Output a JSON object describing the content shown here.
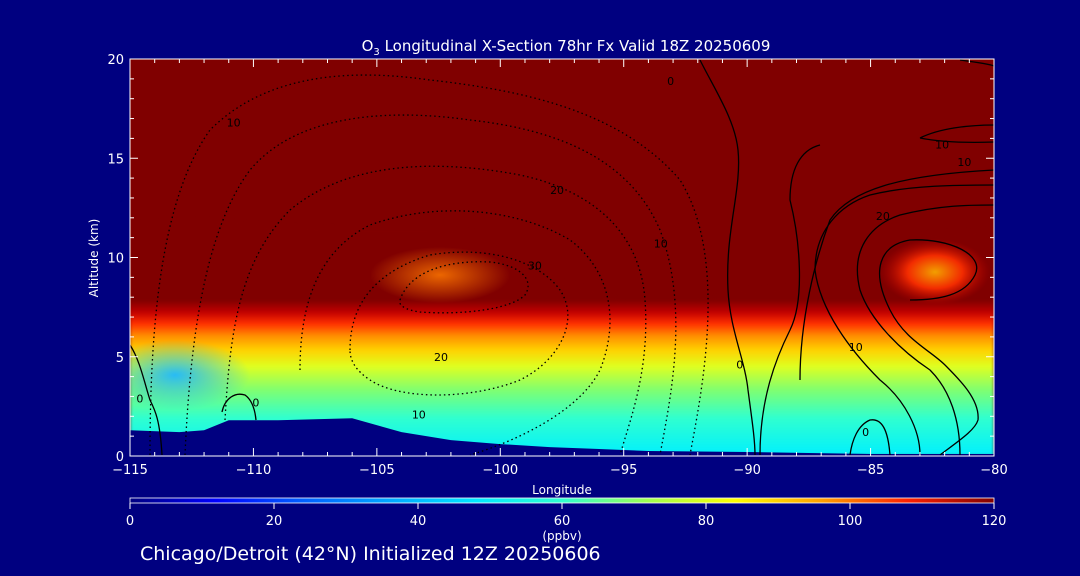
{
  "chart_data": {
    "type": "heatmap",
    "title": "O3 Longitudinal X-Section 78hr  Fx Valid 18Z 20250609",
    "title_parts": {
      "prefix": "O",
      "subscript": "3",
      "suffix": " Longitudinal X-Section 78hr  Fx Valid 18Z 20250609"
    },
    "xlabel": "Longitude",
    "ylabel": "Altitude (km)",
    "xlim": [
      -115,
      -80
    ],
    "ylim": [
      0,
      20
    ],
    "x_ticks": [
      -115,
      -110,
      -105,
      -100,
      -95,
      -90,
      -85,
      -80
    ],
    "x_tick_labels": [
      "−115",
      "−110",
      "−105",
      "−100",
      "−95",
      "−90",
      "−85",
      "−80"
    ],
    "y_ticks": [
      0,
      5,
      10,
      15,
      20
    ],
    "y_tick_labels": [
      "0",
      "5",
      "10",
      "15",
      "20"
    ],
    "colorbar": {
      "label": "(ppbv)",
      "range": [
        0,
        120
      ],
      "ticks": [
        0,
        20,
        40,
        60,
        80,
        100,
        120
      ],
      "tick_labels": [
        "0",
        "20",
        "40",
        "60",
        "80",
        "100",
        "120"
      ],
      "colors": [
        "#000080",
        "#0000ff",
        "#0080ff",
        "#00e0ff",
        "#00ffc0",
        "#80ff40",
        "#ffff00",
        "#ffa000",
        "#ff4000",
        "#d00000",
        "#800000"
      ]
    },
    "terrain_km": [
      [
        -115,
        1.3
      ],
      [
        -113,
        1.2
      ],
      [
        -112,
        1.3
      ],
      [
        -111,
        1.8
      ],
      [
        -109,
        1.8
      ],
      [
        -106,
        1.9
      ],
      [
        -104,
        1.2
      ],
      [
        -102,
        0.8
      ],
      [
        -100,
        0.6
      ],
      [
        -98,
        0.45
      ],
      [
        -96,
        0.35
      ],
      [
        -94,
        0.25
      ],
      [
        -90,
        0.2
      ],
      [
        -85,
        0.1
      ],
      [
        -80,
        0.1
      ]
    ],
    "ozone_field_description_points": {
      "tropopause_120ppbv_altitude_km": [
        [
          -115,
          11.7
        ],
        [
          -112,
          11.9
        ],
        [
          -109,
          11.6
        ],
        [
          -106,
          11.5
        ],
        [
          -103,
          11.5
        ],
        [
          -101,
          11.3
        ],
        [
          -99,
          9.3
        ],
        [
          -97,
          8.7
        ],
        [
          -95,
          7.8
        ],
        [
          -92,
          7.8
        ],
        [
          -90,
          8.4
        ],
        [
          -87,
          8.6
        ],
        [
          -85,
          8.9
        ],
        [
          -83,
          11.2
        ],
        [
          -80,
          11.4
        ]
      ]
    },
    "contours": [
      {
        "value": "0",
        "label_at": [
          -114.6,
          2.9
        ]
      },
      {
        "value": "0",
        "label_at": [
          -109.9,
          2.7
        ]
      },
      {
        "value": "0",
        "label_at": [
          -93.1,
          18.9
        ]
      },
      {
        "value": "0",
        "label_at": [
          -90.3,
          4.6
        ]
      },
      {
        "value": "0",
        "label_at": [
          -85.2,
          1.2
        ]
      },
      {
        "value": "10",
        "label_at": [
          -110.8,
          16.8
        ]
      },
      {
        "value": "10",
        "label_at": [
          -82.1,
          15.7
        ]
      },
      {
        "value": "10",
        "label_at": [
          -81.2,
          14.8
        ]
      },
      {
        "value": "10",
        "label_at": [
          -85.6,
          5.5
        ]
      },
      {
        "value": "10",
        "label_at": [
          -93.5,
          10.7
        ]
      },
      {
        "value": "10",
        "label_at": [
          -103.3,
          2.1
        ]
      },
      {
        "value": "20",
        "label_at": [
          -97.7,
          13.4
        ]
      },
      {
        "value": "20",
        "label_at": [
          -84.5,
          12.1
        ]
      },
      {
        "value": "20",
        "label_at": [
          -102.4,
          5.0
        ]
      },
      {
        "value": "30",
        "label_at": [
          -98.6,
          9.6
        ]
      }
    ]
  },
  "footer_text": "Chicago/Detroit (42°N) Initialized 12Z 20250606"
}
